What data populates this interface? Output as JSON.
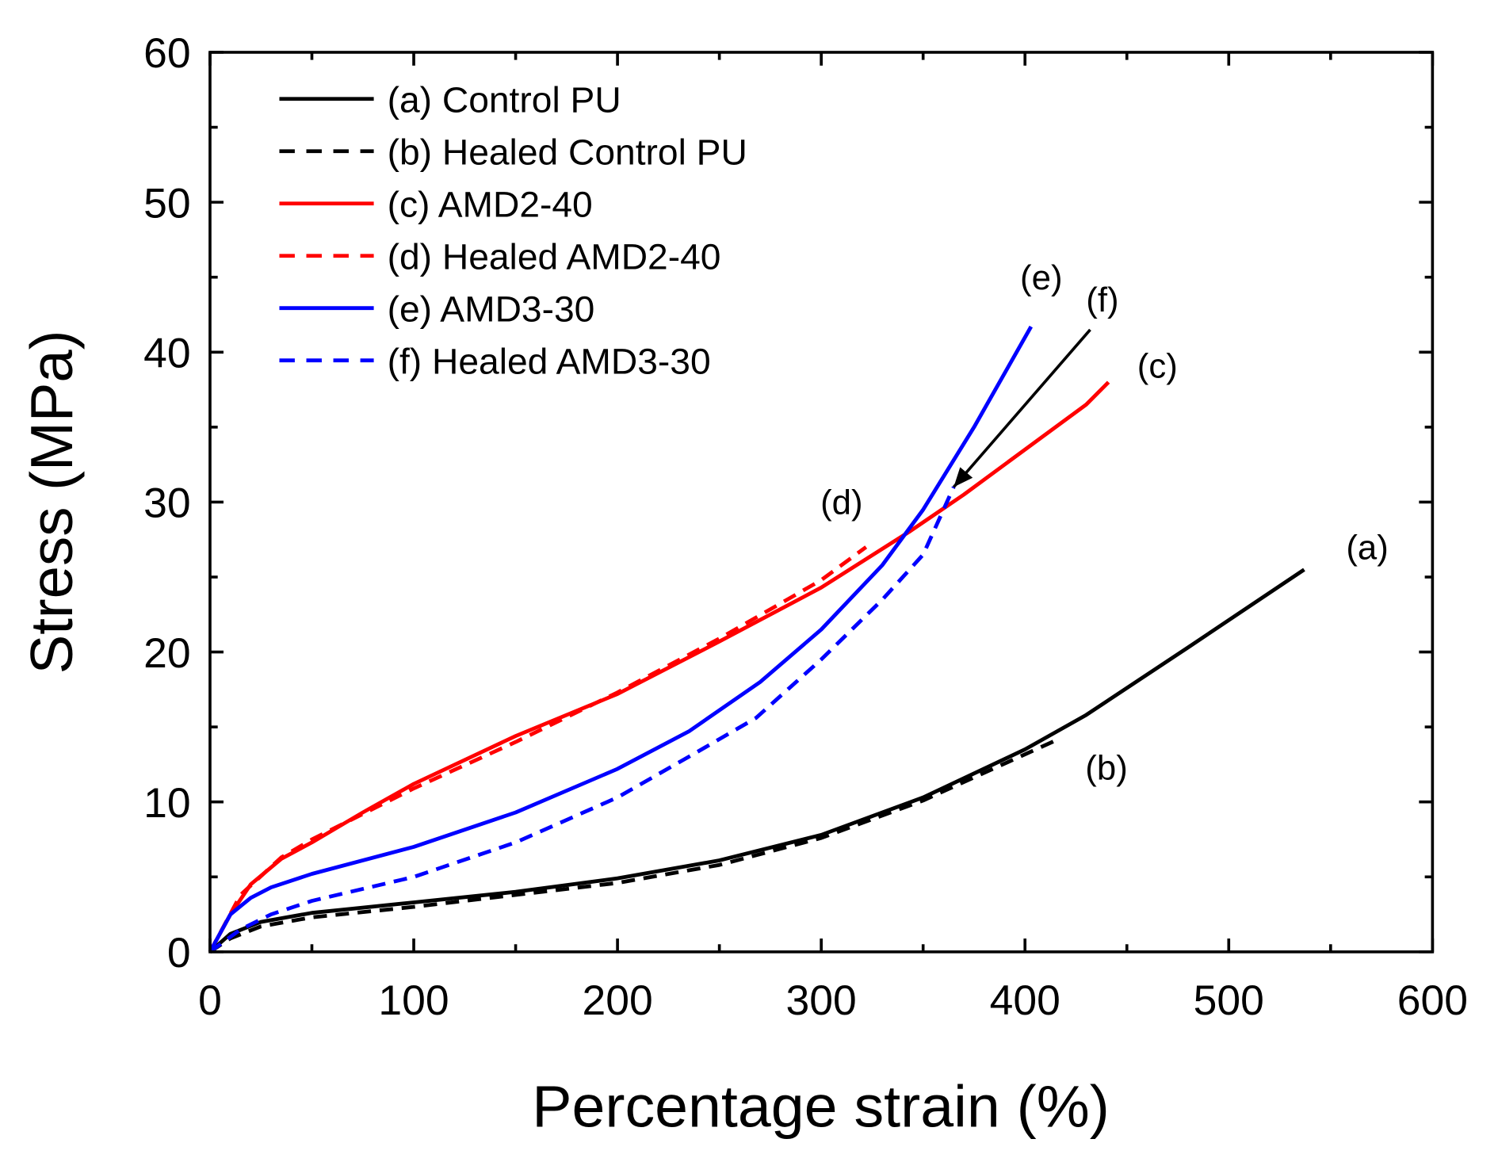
{
  "chart_data": {
    "type": "line",
    "xlabel": "Percentage strain (%)",
    "ylabel": "Stress (MPa)",
    "xlim": [
      0,
      600
    ],
    "ylim": [
      0,
      60
    ],
    "xticks": [
      0,
      100,
      200,
      300,
      400,
      500,
      600
    ],
    "yticks": [
      0,
      10,
      20,
      30,
      40,
      50,
      60
    ],
    "grid": false,
    "legend_position": "top-left",
    "series": [
      {
        "name": "(a) Control PU",
        "color": "#000000",
        "dash": false,
        "label": "(a)",
        "points": [
          [
            0,
            0
          ],
          [
            10,
            1.2
          ],
          [
            25,
            2
          ],
          [
            50,
            2.6
          ],
          [
            100,
            3.3
          ],
          [
            150,
            4
          ],
          [
            200,
            4.9
          ],
          [
            250,
            6.1
          ],
          [
            300,
            7.8
          ],
          [
            350,
            10.3
          ],
          [
            400,
            13.5
          ],
          [
            430,
            15.8
          ],
          [
            480,
            20.3
          ],
          [
            537,
            25.5
          ]
        ]
      },
      {
        "name": "(b) Healed Control PU",
        "color": "#000000",
        "dash": true,
        "label": "(b)",
        "points": [
          [
            0,
            0
          ],
          [
            10,
            0.9
          ],
          [
            25,
            1.7
          ],
          [
            50,
            2.3
          ],
          [
            100,
            3
          ],
          [
            150,
            3.8
          ],
          [
            200,
            4.6
          ],
          [
            250,
            5.8
          ],
          [
            300,
            7.6
          ],
          [
            350,
            10.1
          ],
          [
            415,
            14.1
          ]
        ]
      },
      {
        "name": "(c) AMD2-40",
        "color": "#ff0000",
        "dash": false,
        "label": "(c)",
        "points": [
          [
            0,
            0
          ],
          [
            10,
            2.5
          ],
          [
            20,
            4.5
          ],
          [
            35,
            6.2
          ],
          [
            50,
            7.3
          ],
          [
            75,
            9.3
          ],
          [
            100,
            11.2
          ],
          [
            150,
            14.4
          ],
          [
            200,
            17.2
          ],
          [
            250,
            20.7
          ],
          [
            300,
            24.3
          ],
          [
            343,
            28
          ],
          [
            370,
            30.5
          ],
          [
            400,
            33.5
          ],
          [
            430,
            36.5
          ],
          [
            441,
            38
          ]
        ]
      },
      {
        "name": "(d) Healed AMD2-40",
        "color": "#ff0000",
        "dash": true,
        "label": "(d)",
        "points": [
          [
            0,
            0
          ],
          [
            15,
            3.8
          ],
          [
            35,
            6.3
          ],
          [
            50,
            7.5
          ],
          [
            100,
            10.9
          ],
          [
            150,
            14
          ],
          [
            200,
            17.3
          ],
          [
            250,
            20.9
          ],
          [
            300,
            24.8
          ],
          [
            322,
            27
          ]
        ]
      },
      {
        "name": "(e) AMD3-30",
        "color": "#0000ff",
        "dash": false,
        "label": "(e)",
        "points": [
          [
            0,
            0
          ],
          [
            10,
            2.5
          ],
          [
            20,
            3.6
          ],
          [
            30,
            4.3
          ],
          [
            50,
            5.2
          ],
          [
            100,
            7
          ],
          [
            150,
            9.3
          ],
          [
            200,
            12.2
          ],
          [
            235,
            14.7
          ],
          [
            270,
            18
          ],
          [
            300,
            21.5
          ],
          [
            330,
            25.8
          ],
          [
            350,
            29.5
          ],
          [
            375,
            35
          ],
          [
            403,
            41.7
          ]
        ]
      },
      {
        "name": "(f) Healed AMD3-30",
        "color": "#0000ff",
        "dash": true,
        "label": "(f)",
        "points": [
          [
            0,
            0
          ],
          [
            15,
            1.5
          ],
          [
            30,
            2.5
          ],
          [
            50,
            3.4
          ],
          [
            100,
            5
          ],
          [
            150,
            7.3
          ],
          [
            200,
            10.3
          ],
          [
            240,
            13.4
          ],
          [
            268,
            15.6
          ],
          [
            300,
            19.5
          ],
          [
            330,
            23.5
          ],
          [
            350,
            26.5
          ],
          [
            365,
            31
          ]
        ]
      }
    ],
    "annotations": [
      {
        "text": "(a)",
        "x": 568,
        "y": 26.2
      },
      {
        "text": "(b)",
        "x": 440,
        "y": 11.5
      },
      {
        "text": "(c)",
        "x": 465,
        "y": 38.3
      },
      {
        "text": "(d)",
        "x": 310,
        "y": 29.2
      },
      {
        "text": "(e)",
        "x": 408,
        "y": 44.2
      },
      {
        "text": "(f)",
        "x": 438,
        "y": 42.7
      }
    ],
    "arrow": {
      "from": [
        432,
        41.5
      ],
      "to": [
        365,
        31
      ]
    }
  }
}
